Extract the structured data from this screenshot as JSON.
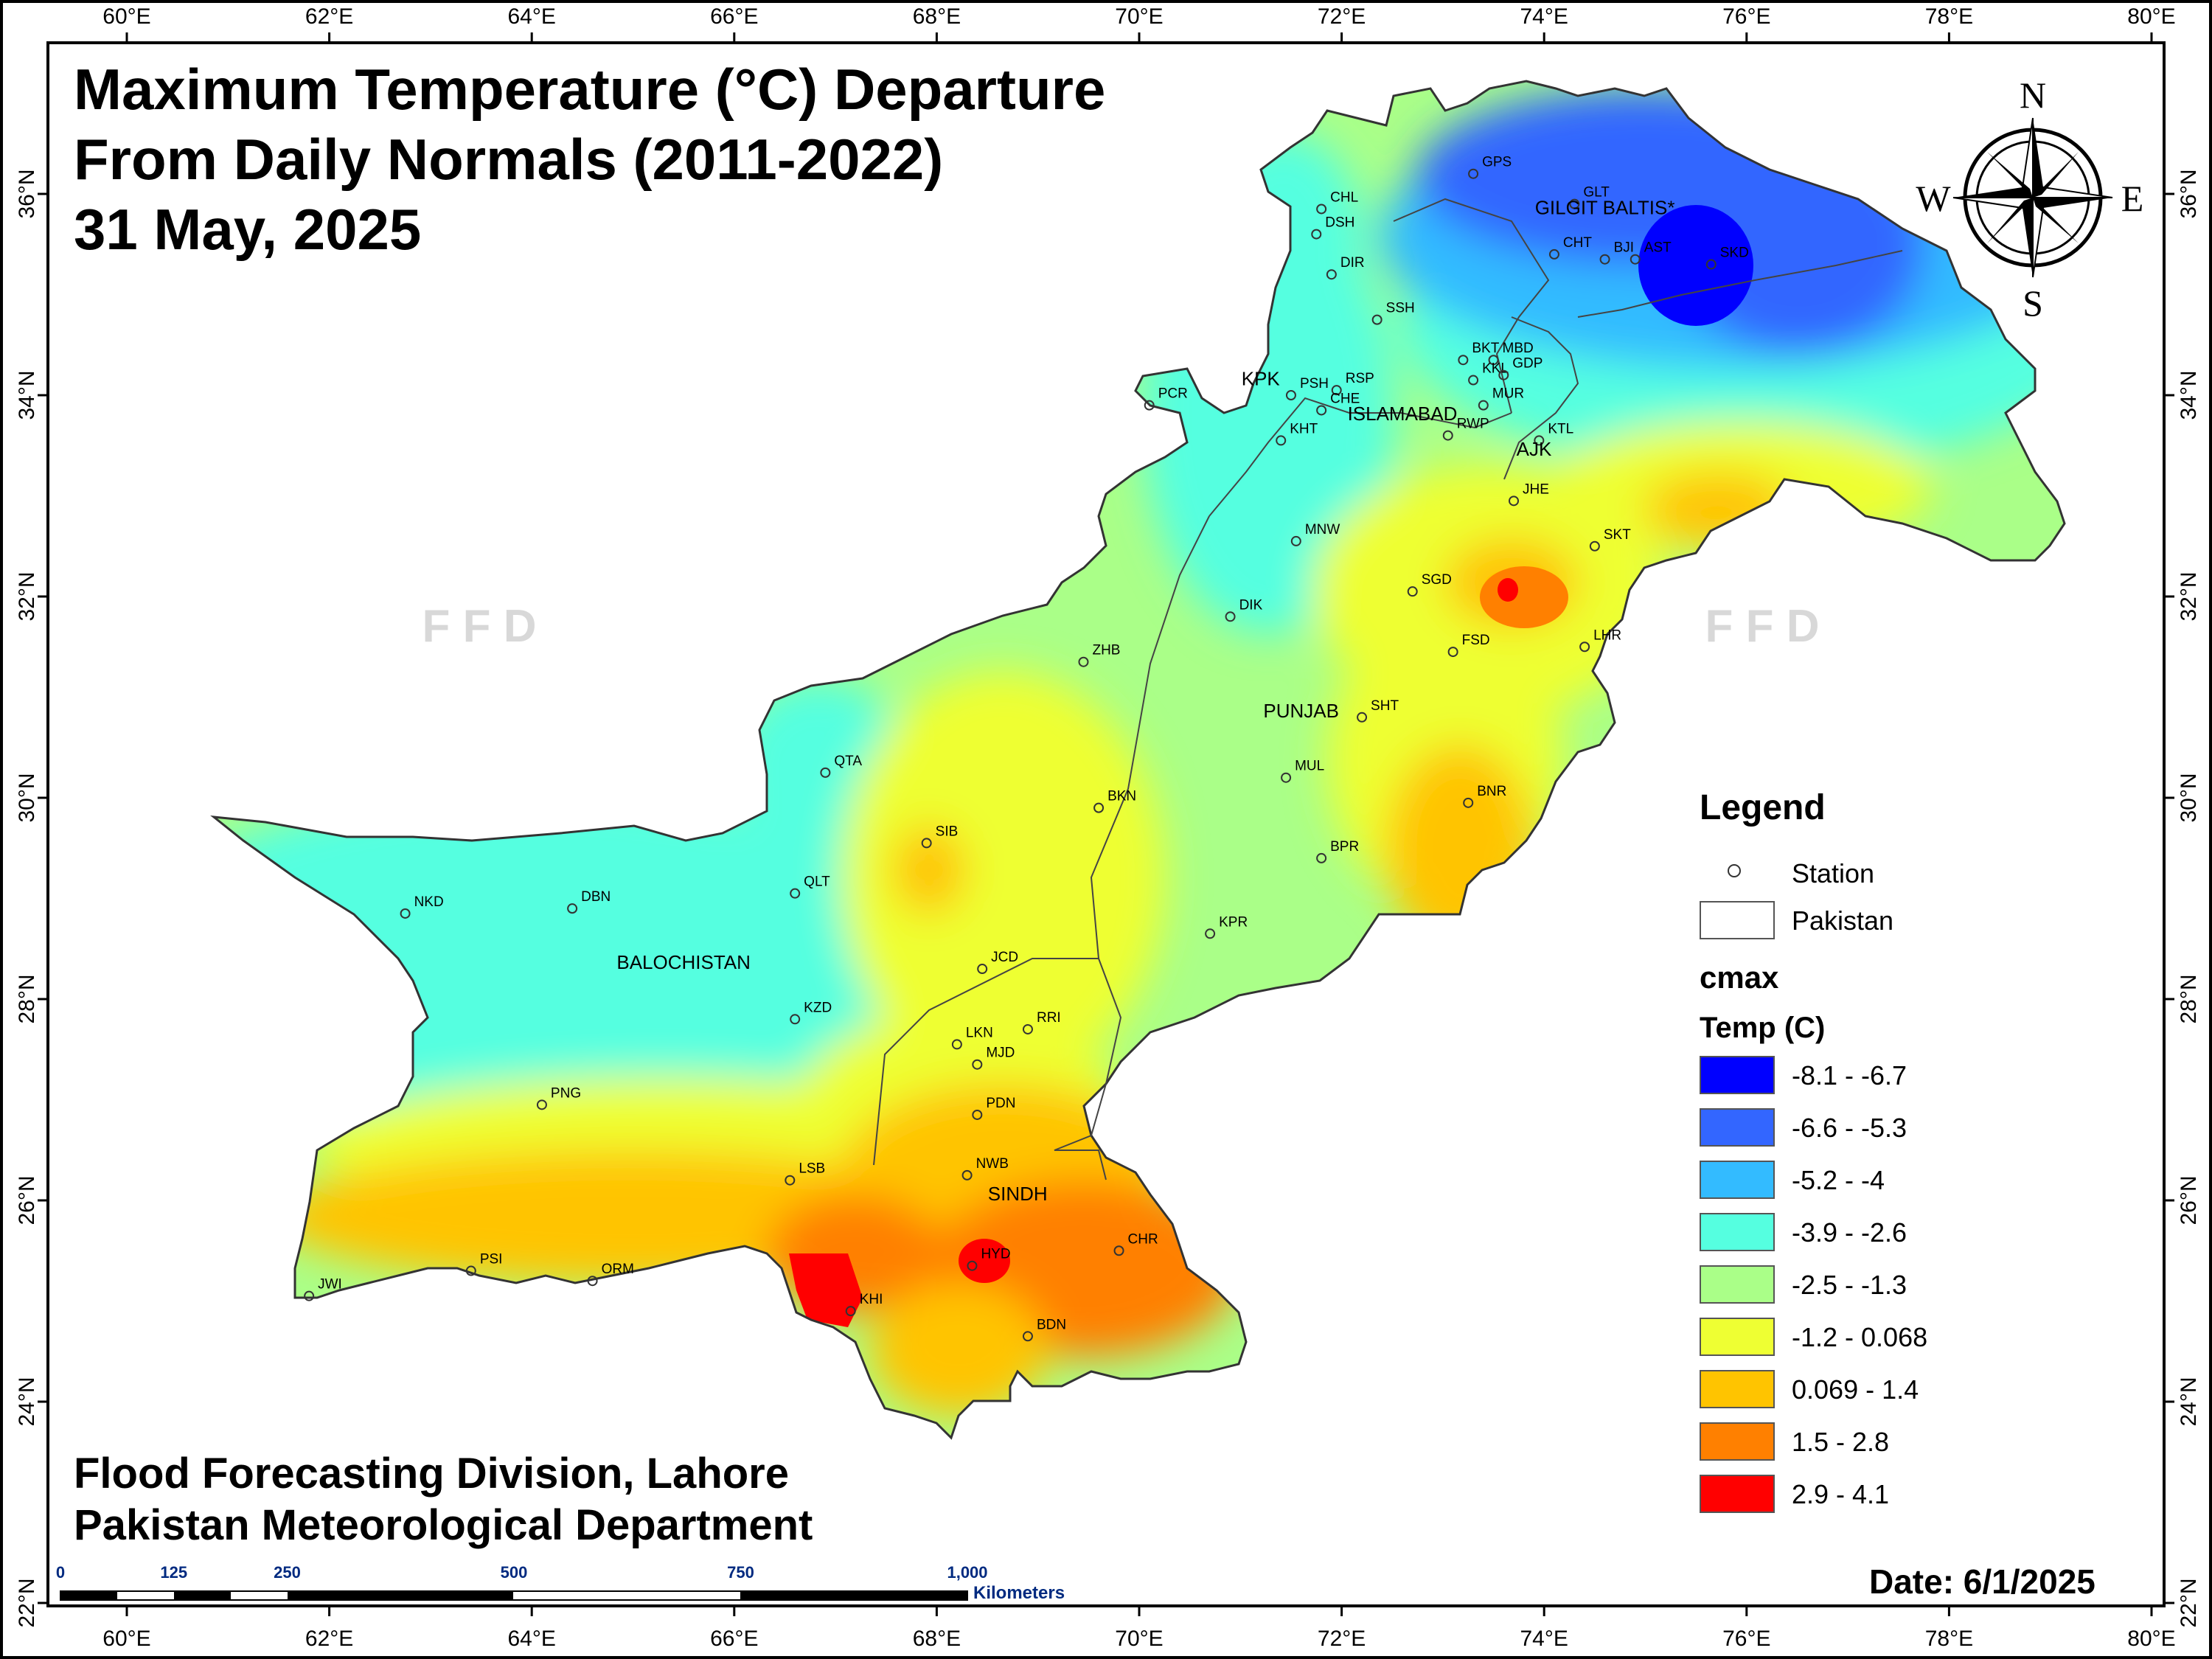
{
  "title": {
    "line1": "Maximum Temperature (°C) Departure",
    "line2": "From Daily Normals (2011-2022)",
    "line3": "31 May, 2025"
  },
  "credits": {
    "line1": "Flood Forecasting Division, Lahore",
    "line2": "Pakistan Meteorological Department"
  },
  "date_label": "Date: 6/1/2025",
  "watermark": "F F D",
  "axes": {
    "lon_ticks": [
      "60°E",
      "62°E",
      "64°E",
      "66°E",
      "68°E",
      "70°E",
      "72°E",
      "74°E",
      "76°E",
      "78°E",
      "80°E"
    ],
    "lat_ticks": [
      "36°N",
      "34°N",
      "32°N",
      "30°N",
      "28°N",
      "26°N",
      "24°N",
      "22°N"
    ]
  },
  "compass": {
    "n": "N",
    "s": "S",
    "e": "E",
    "w": "W"
  },
  "scale_bar": {
    "ticks": [
      "0",
      "125",
      "250",
      "500",
      "750",
      "1,000"
    ],
    "unit": "Kilometers"
  },
  "legend": {
    "title": "Legend",
    "station_label": "Station",
    "boundary_label": "Pakistan",
    "field_name": "cmax",
    "unit_label": "Temp (C)",
    "classes": [
      {
        "label": "-8.1 - -6.7",
        "color": "#0000ff"
      },
      {
        "label": "-6.6 - -5.3",
        "color": "#3366ff"
      },
      {
        "label": "-5.2 - -4",
        "color": "#33bbff"
      },
      {
        "label": "-3.9 - -2.6",
        "color": "#55ffe0"
      },
      {
        "label": "-2.5 - -1.3",
        "color": "#aaff88"
      },
      {
        "label": "-1.2 - 0.068",
        "color": "#eeff33"
      },
      {
        "label": "0.069 - 1.4",
        "color": "#ffc400"
      },
      {
        "label": "1.5 - 2.8",
        "color": "#ff8000"
      },
      {
        "label": "2.9 - 4.1",
        "color": "#ff0000"
      }
    ]
  },
  "provinces": [
    {
      "name": "BALOCHISTAN",
      "lon": 65.5,
      "lat": 28.3
    },
    {
      "name": "SINDH",
      "lon": 68.8,
      "lat": 26.0
    },
    {
      "name": "PUNJAB",
      "lon": 71.6,
      "lat": 30.8
    },
    {
      "name": "KPK",
      "lon": 71.2,
      "lat": 34.1
    },
    {
      "name": "ISLAMABAD",
      "lon": 72.6,
      "lat": 33.75
    },
    {
      "name": "AJK",
      "lon": 73.9,
      "lat": 33.4
    },
    {
      "name": "GILGIT BALTIS*",
      "lon": 74.6,
      "lat": 35.8
    }
  ],
  "stations": [
    {
      "code": "GPS",
      "lon": 73.3,
      "lat": 36.2
    },
    {
      "code": "GLT",
      "lon": 74.3,
      "lat": 35.9
    },
    {
      "code": "CHL",
      "lon": 71.8,
      "lat": 35.85
    },
    {
      "code": "DSH",
      "lon": 71.75,
      "lat": 35.6
    },
    {
      "code": "DIR",
      "lon": 71.9,
      "lat": 35.2
    },
    {
      "code": "CHT",
      "lon": 74.1,
      "lat": 35.4
    },
    {
      "code": "BJI",
      "lon": 74.6,
      "lat": 35.35
    },
    {
      "code": "AST",
      "lon": 74.9,
      "lat": 35.35
    },
    {
      "code": "SKD",
      "lon": 75.65,
      "lat": 35.3
    },
    {
      "code": "SSH",
      "lon": 72.35,
      "lat": 34.75
    },
    {
      "code": "BKT",
      "lon": 73.2,
      "lat": 34.35
    },
    {
      "code": "MBD",
      "lon": 73.5,
      "lat": 34.35
    },
    {
      "code": "KKL",
      "lon": 73.3,
      "lat": 34.15
    },
    {
      "code": "GDP",
      "lon": 73.6,
      "lat": 34.2
    },
    {
      "code": "PSH",
      "lon": 71.5,
      "lat": 34.0
    },
    {
      "code": "RSP",
      "lon": 71.95,
      "lat": 34.05
    },
    {
      "code": "CHE",
      "lon": 71.8,
      "lat": 33.85
    },
    {
      "code": "MUR",
      "lon": 73.4,
      "lat": 33.9
    },
    {
      "code": "KHT",
      "lon": 71.4,
      "lat": 33.55
    },
    {
      "code": "RWP",
      "lon": 73.05,
      "lat": 33.6
    },
    {
      "code": "KTL",
      "lon": 73.95,
      "lat": 33.55
    },
    {
      "code": "PCR",
      "lon": 70.1,
      "lat": 33.9
    },
    {
      "code": "JHE",
      "lon": 73.7,
      "lat": 32.95
    },
    {
      "code": "MNW",
      "lon": 71.55,
      "lat": 32.55
    },
    {
      "code": "SKT",
      "lon": 74.5,
      "lat": 32.5
    },
    {
      "code": "SGD",
      "lon": 72.7,
      "lat": 32.05
    },
    {
      "code": "DIK",
      "lon": 70.9,
      "lat": 31.8
    },
    {
      "code": "LHR",
      "lon": 74.4,
      "lat": 31.5
    },
    {
      "code": "FSD",
      "lon": 73.1,
      "lat": 31.45
    },
    {
      "code": "ZHB",
      "lon": 69.45,
      "lat": 31.35
    },
    {
      "code": "SHT",
      "lon": 72.2,
      "lat": 30.8
    },
    {
      "code": "BNR",
      "lon": 73.25,
      "lat": 29.95
    },
    {
      "code": "QTA",
      "lon": 66.9,
      "lat": 30.25
    },
    {
      "code": "MUL",
      "lon": 71.45,
      "lat": 30.2
    },
    {
      "code": "BKN",
      "lon": 69.6,
      "lat": 29.9
    },
    {
      "code": "SIB",
      "lon": 67.9,
      "lat": 29.55
    },
    {
      "code": "BPR",
      "lon": 71.8,
      "lat": 29.4
    },
    {
      "code": "NKD",
      "lon": 62.75,
      "lat": 28.85
    },
    {
      "code": "DBN",
      "lon": 64.4,
      "lat": 28.9
    },
    {
      "code": "QLT",
      "lon": 66.6,
      "lat": 29.05
    },
    {
      "code": "KPR",
      "lon": 70.7,
      "lat": 28.65
    },
    {
      "code": "JCD",
      "lon": 68.45,
      "lat": 28.3
    },
    {
      "code": "KZD",
      "lon": 66.6,
      "lat": 27.8
    },
    {
      "code": "RRI",
      "lon": 68.9,
      "lat": 27.7
    },
    {
      "code": "LKN",
      "lon": 68.2,
      "lat": 27.55
    },
    {
      "code": "MJD",
      "lon": 68.4,
      "lat": 27.35
    },
    {
      "code": "PNG",
      "lon": 64.1,
      "lat": 26.95
    },
    {
      "code": "PDN",
      "lon": 68.4,
      "lat": 26.85
    },
    {
      "code": "LSB",
      "lon": 66.55,
      "lat": 26.2
    },
    {
      "code": "NWB",
      "lon": 68.3,
      "lat": 26.25
    },
    {
      "code": "CHR",
      "lon": 69.8,
      "lat": 25.5
    },
    {
      "code": "HYD",
      "lon": 68.35,
      "lat": 25.35
    },
    {
      "code": "PSI",
      "lon": 63.4,
      "lat": 25.3
    },
    {
      "code": "ORM",
      "lon": 64.6,
      "lat": 25.2
    },
    {
      "code": "JWI",
      "lon": 61.8,
      "lat": 25.05
    },
    {
      "code": "KHI",
      "lon": 67.15,
      "lat": 24.9
    },
    {
      "code": "BDN",
      "lon": 68.9,
      "lat": 24.65
    }
  ]
}
